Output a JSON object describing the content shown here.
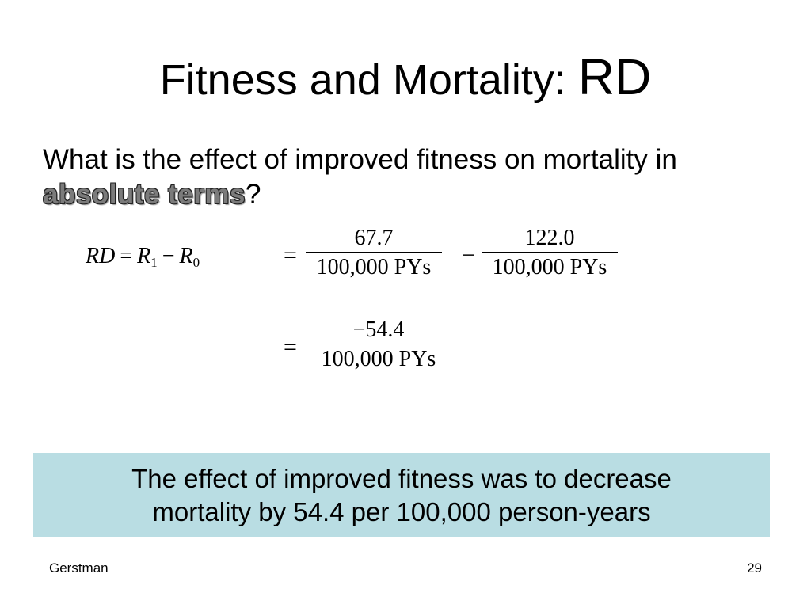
{
  "title": {
    "main": "Fitness and Mortality: ",
    "suffix": "RD"
  },
  "question": {
    "text": "What is the effect of improved fitness on mortality in",
    "emphasis": "absolute terms",
    "end": "?"
  },
  "formula": {
    "lhs": "RD",
    "equals": "=",
    "r1": "R",
    "r1_sub": "1",
    "minus": "−",
    "r0": "R",
    "r0_sub": "0",
    "term1_numerator": "67.7",
    "term1_denominator": "100,000 PYs",
    "term2_numerator": "122.0",
    "term2_denominator": "100,000 PYs",
    "result_numerator": "−54.4",
    "result_denominator": "100,000 PYs"
  },
  "conclusion": {
    "line1": "The effect of improved fitness was to decrease",
    "line2": "mortality by 54.4 per 100,000 person-years"
  },
  "footer": {
    "author": "Gerstman",
    "page_number": "29"
  },
  "colors": {
    "callout_background": "#b9dde3",
    "emphasis_text": "#7b7b7b"
  }
}
